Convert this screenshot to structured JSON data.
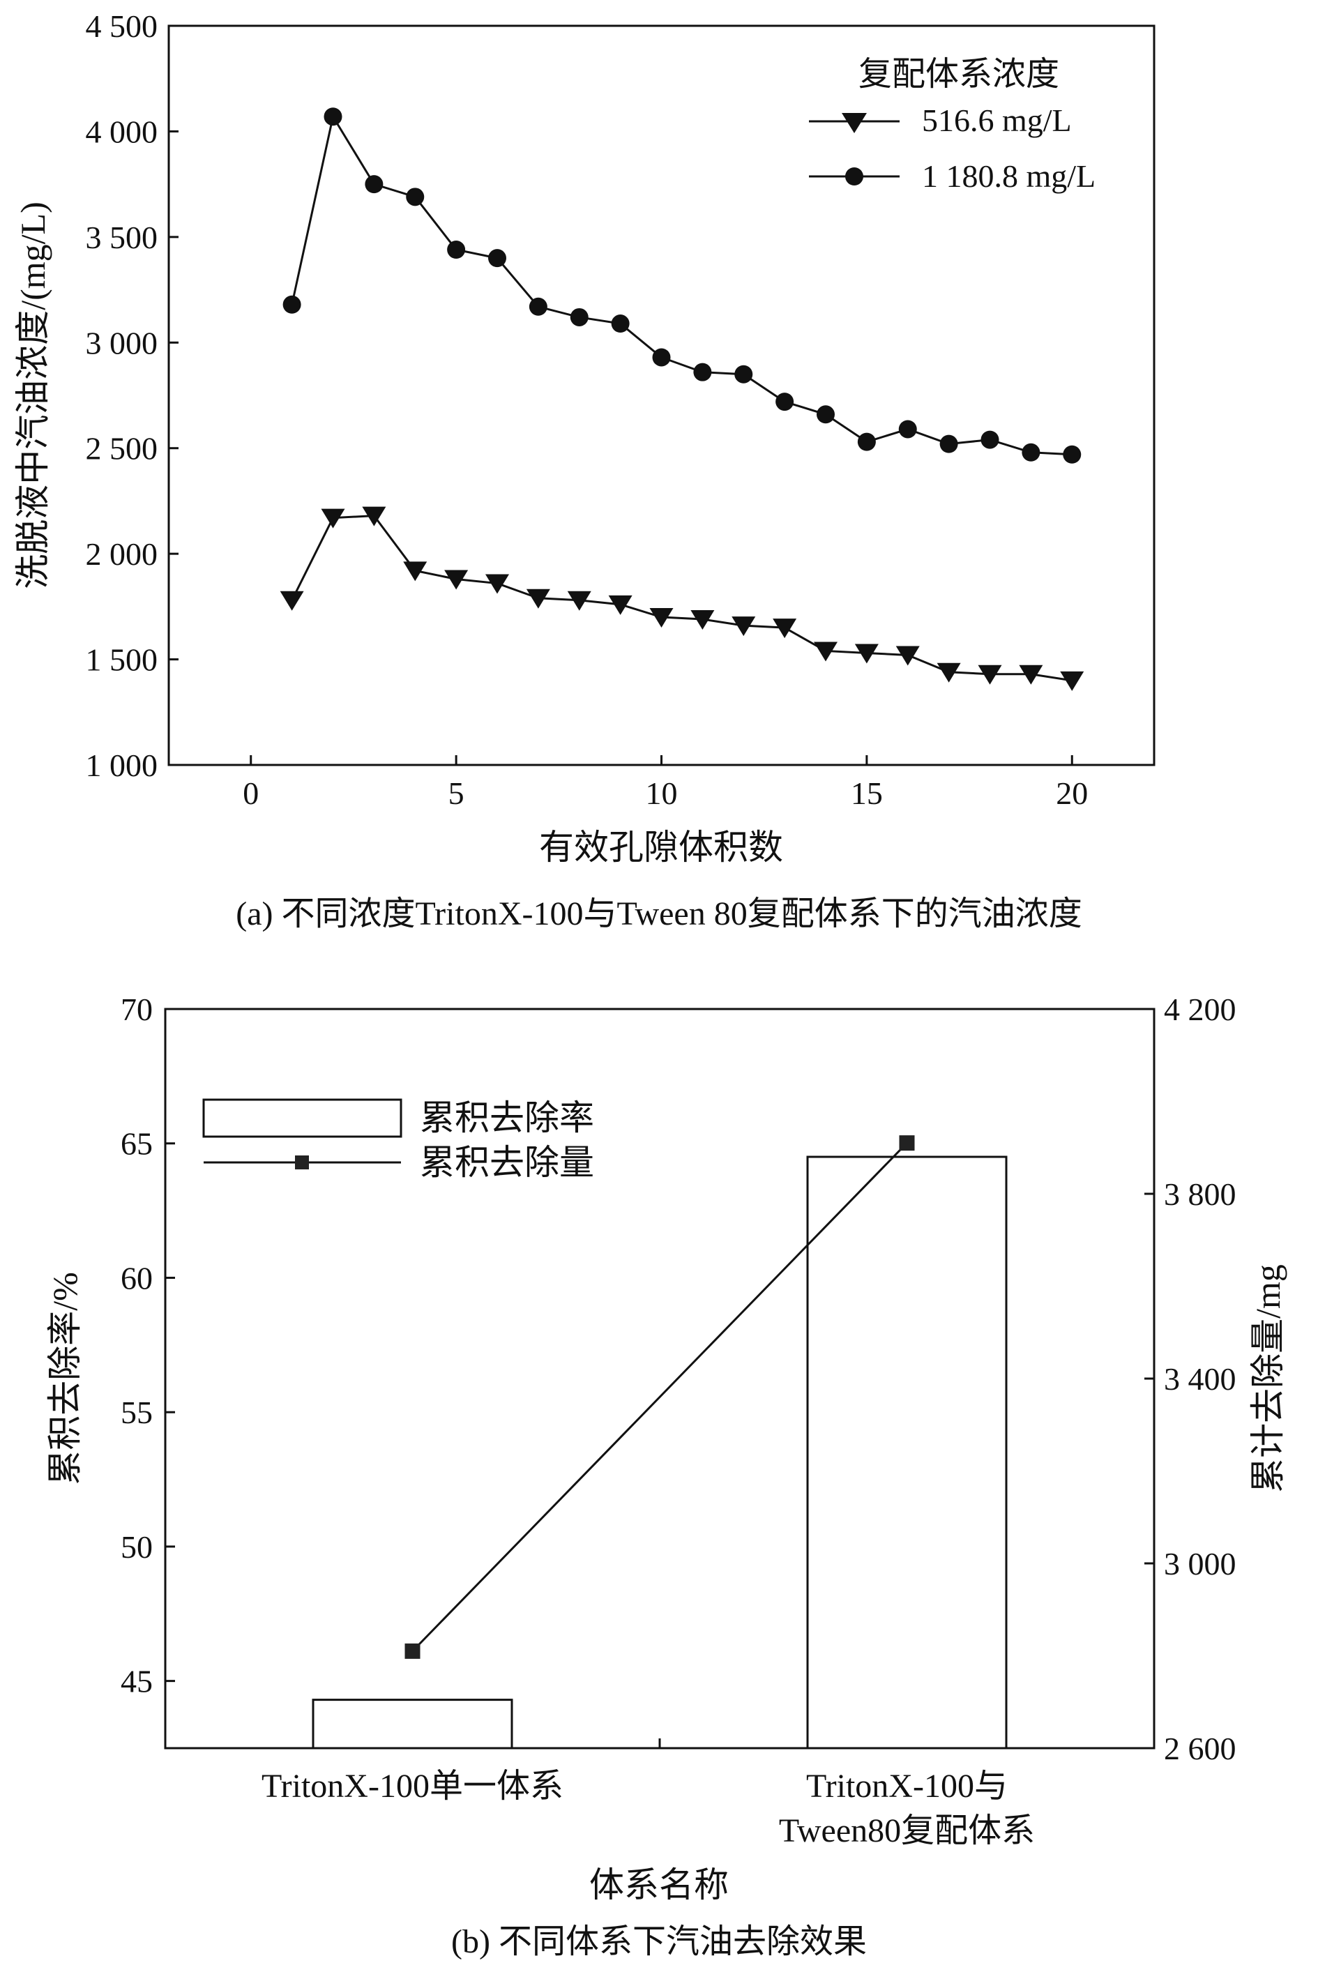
{
  "chart_data": [
    {
      "type": "line",
      "caption": "(a) 不同浓度TritonX-100与Tween 80复配体系下的汽油浓度",
      "xlabel": "有效孔隙体积数",
      "ylabel": "洗脱液中汽油浓度/(mg/L)",
      "xlim": [
        -2,
        22
      ],
      "ylim": [
        1000,
        4500
      ],
      "xticks": [
        0,
        5,
        10,
        15,
        20
      ],
      "xtick_labels": [
        "0",
        "5",
        "10",
        "15",
        "20"
      ],
      "yticks": [
        1000,
        1500,
        2000,
        2500,
        3000,
        3500,
        4000,
        4500
      ],
      "ytick_labels": [
        "1 000",
        "1 500",
        "2 000",
        "2 500",
        "3 000",
        "3 500",
        "4 000",
        "4 500"
      ],
      "legend_title": "复配体系浓度",
      "legend_position": "top-right",
      "x": [
        1,
        2,
        3,
        4,
        5,
        6,
        7,
        8,
        9,
        10,
        11,
        12,
        13,
        14,
        15,
        16,
        17,
        18,
        19,
        20
      ],
      "series": [
        {
          "name": "516.6 mg/L",
          "marker": "triangle-down",
          "values": [
            1780,
            2170,
            2180,
            1920,
            1880,
            1860,
            1790,
            1780,
            1760,
            1700,
            1690,
            1660,
            1650,
            1540,
            1530,
            1520,
            1440,
            1430,
            1430,
            1400
          ]
        },
        {
          "name": "1 180.8 mg/L",
          "marker": "circle",
          "values": [
            3180,
            4070,
            3750,
            3690,
            3440,
            3400,
            3170,
            3120,
            3090,
            2930,
            2860,
            2850,
            2720,
            2660,
            2530,
            2590,
            2520,
            2540,
            2480,
            2470
          ]
        }
      ]
    },
    {
      "type": "bar",
      "caption": "(b) 不同体系下汽油去除效果",
      "xlabel": "体系名称",
      "ylabel": "累积去除率/%",
      "y2label": "累计去除量/mg",
      "categories": [
        [
          "TritonX-100单一体系"
        ],
        [
          "TritonX-100与",
          "Tween80复配体系"
        ]
      ],
      "ylim": [
        42.5,
        70
      ],
      "yticks": [
        45,
        50,
        55,
        60,
        65,
        70
      ],
      "y2lim": [
        2600,
        4200
      ],
      "y2ticks": [
        2600,
        3000,
        3400,
        3800,
        4200
      ],
      "y2tick_labels": [
        "2 600",
        "3 000",
        "3 400",
        "3 800",
        "4 200"
      ],
      "legend_position": "top-left",
      "series": [
        {
          "name": "累积去除率",
          "kind": "bar",
          "axis": "left",
          "values": [
            44.3,
            64.5
          ]
        },
        {
          "name": "累积去除量",
          "kind": "line",
          "axis": "right",
          "marker": "square",
          "values": [
            2810,
            3910
          ]
        }
      ]
    }
  ]
}
